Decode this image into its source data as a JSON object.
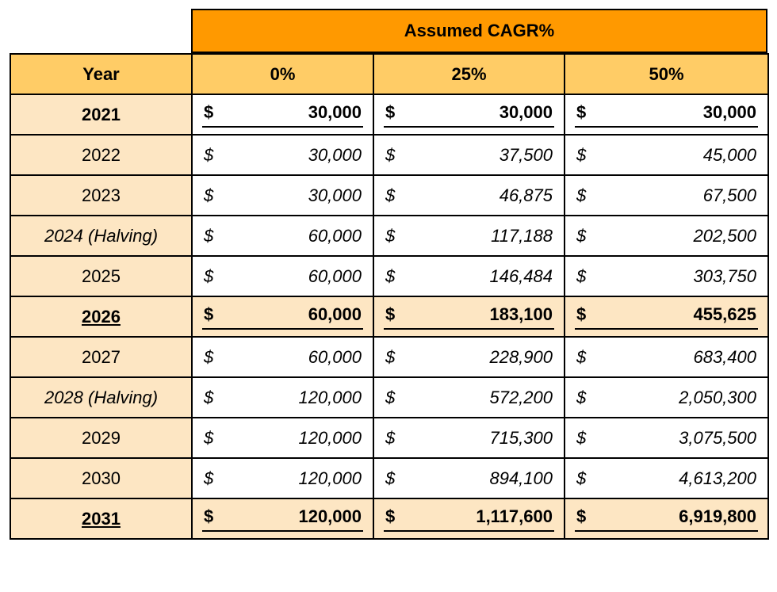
{
  "table": {
    "caption": "Assumed CAGR%",
    "headers": [
      "Year",
      "0%",
      "25%",
      "50%"
    ],
    "currency_symbol": "$",
    "rows": [
      {
        "year": "2021",
        "values": [
          "30,000",
          "30,000",
          "30,000"
        ]
      },
      {
        "year": "2022",
        "values": [
          "30,000",
          "37,500",
          "45,000"
        ]
      },
      {
        "year": "2023",
        "values": [
          "30,000",
          "46,875",
          "67,500"
        ]
      },
      {
        "year": "2024 (Halving)",
        "values": [
          "60,000",
          "117,188",
          "202,500"
        ]
      },
      {
        "year": "2025",
        "values": [
          "60,000",
          "146,484",
          "303,750"
        ]
      },
      {
        "year": "2026",
        "values": [
          "60,000",
          "183,100",
          "455,625"
        ]
      },
      {
        "year": "2027",
        "values": [
          "60,000",
          "228,900",
          "683,400"
        ]
      },
      {
        "year": "2028 (Halving)",
        "values": [
          "120,000",
          "572,200",
          "2,050,300"
        ]
      },
      {
        "year": "2029",
        "values": [
          "120,000",
          "715,300",
          "3,075,500"
        ]
      },
      {
        "year": "2030",
        "values": [
          "120,000",
          "894,100",
          "4,613,200"
        ]
      },
      {
        "year": "2031",
        "values": [
          "120,000",
          "1,117,600",
          "6,919,800"
        ]
      }
    ]
  },
  "colors": {
    "caption_fill": "#ff9900",
    "header_fill": "#ffcc66",
    "highlight_fill": "#fde6c3"
  }
}
